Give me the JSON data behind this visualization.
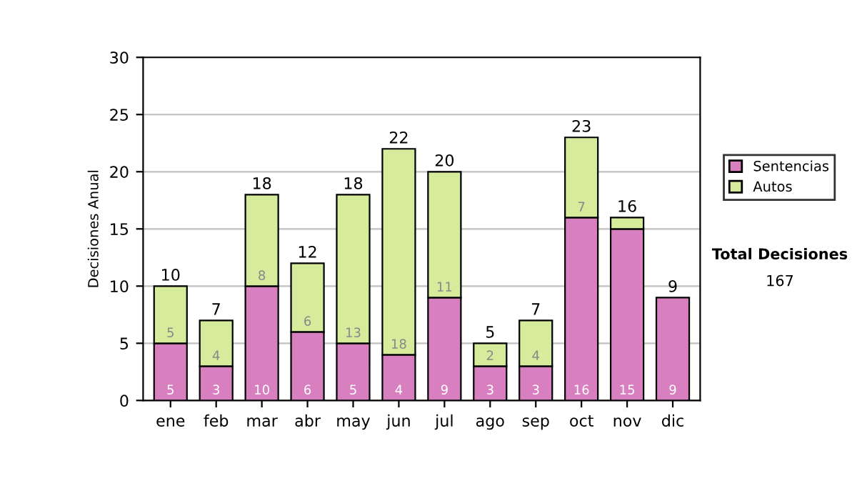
{
  "chart_data": {
    "type": "bar",
    "stacked": true,
    "ylabel": "Decisiones Anual",
    "categories": [
      "ene",
      "feb",
      "mar",
      "abr",
      "may",
      "jun",
      "jul",
      "ago",
      "sep",
      "oct",
      "nov",
      "dic"
    ],
    "series": [
      {
        "name": "Sentencias",
        "color": "#d77fbf",
        "values": [
          5,
          3,
          10,
          6,
          5,
          4,
          9,
          3,
          3,
          16,
          15,
          9
        ],
        "value_labels": [
          "5",
          "3",
          "10",
          "6",
          "5",
          "4",
          "9",
          "3",
          "3",
          "16",
          "15",
          "9"
        ]
      },
      {
        "name": "Autos",
        "color": "#d6eb9c",
        "values": [
          5,
          4,
          8,
          6,
          13,
          18,
          11,
          2,
          4,
          7,
          1,
          null
        ],
        "value_labels": [
          "5",
          "4",
          "8",
          "6",
          "13",
          "18",
          "11",
          "2",
          "4",
          "7",
          null,
          null
        ]
      }
    ],
    "totals": [
      "10",
      "7",
      "18",
      "12",
      "18",
      "22",
      "20",
      "5",
      "7",
      "23",
      "16",
      "9"
    ],
    "ylim": [
      0,
      30
    ],
    "yticks": [
      0,
      5,
      10,
      15,
      20,
      25,
      30
    ],
    "grid": "y",
    "legend": "right",
    "annotations": [
      "Total Decisiones",
      "167"
    ]
  }
}
